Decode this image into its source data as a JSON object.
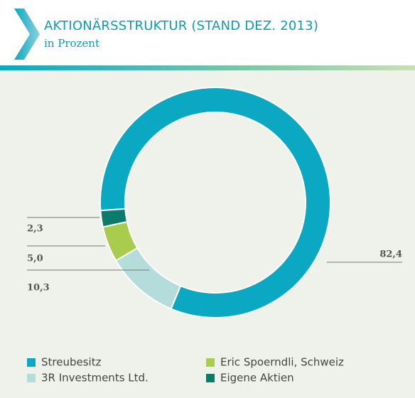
{
  "chart_data": {
    "type": "donut",
    "title": "AKTIONÄRSSTRUKTUR (STAND DEZ. 2013)",
    "subtitle": "in Prozent",
    "categories": [
      "Streubesitz",
      "3R Investments Ltd.",
      "Eric Spoerndli, Schweiz",
      "Eigene Aktien"
    ],
    "values": [
      82.4,
      10.3,
      5.0,
      2.3
    ],
    "value_labels": [
      "82,4",
      "10,3",
      "5,0",
      "2,3"
    ],
    "colors": [
      "#0aa8c2",
      "#b4dcdb",
      "#a9cc4f",
      "#0c7b6b"
    ]
  }
}
